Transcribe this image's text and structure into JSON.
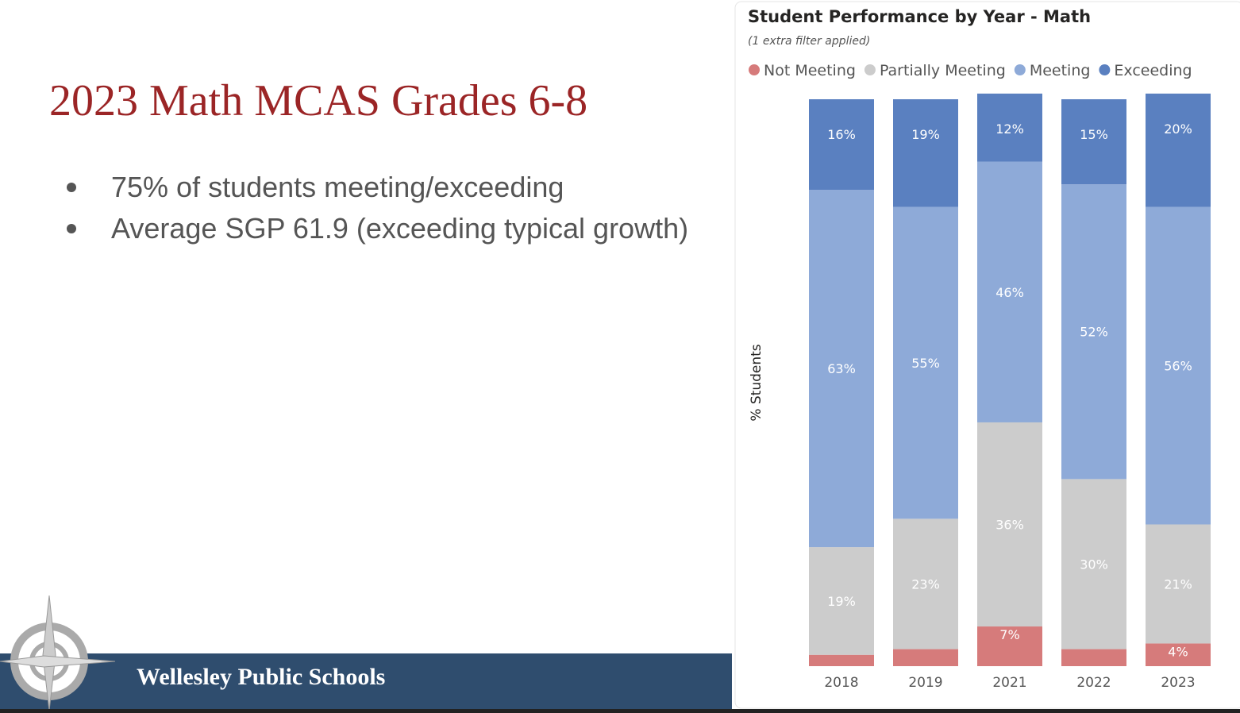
{
  "slide": {
    "title": "2023 Math MCAS Grades 6-8",
    "bullets": [
      "75% of students meeting/exceeding",
      "Average SGP 61.9 (exceeding typical growth)"
    ],
    "footer": "Wellesley Public Schools"
  },
  "chart_data": {
    "type": "stacked_bar",
    "title": "Student Performance by Year - Math",
    "subtitle": "(1 extra filter applied)",
    "y_label": "% Students",
    "categories": [
      "2018",
      "2019",
      "2021",
      "2022",
      "2023"
    ],
    "ylim": [
      0,
      100
    ],
    "series": [
      {
        "name": "Not Meeting",
        "color": "#d67b7b",
        "values": [
          2,
          3,
          7,
          3,
          4
        ],
        "value_labels": [
          null,
          null,
          "7%",
          null,
          "4%"
        ]
      },
      {
        "name": "Partially Meeting",
        "color": "#cccccc",
        "values": [
          19,
          23,
          36,
          30,
          21
        ],
        "value_labels": [
          "19%",
          "23%",
          "36%",
          "30%",
          "21%"
        ]
      },
      {
        "name": "Meeting",
        "color": "#8eaad8",
        "values": [
          63,
          55,
          46,
          52,
          56
        ],
        "value_labels": [
          "63%",
          "55%",
          "46%",
          "52%",
          "56%"
        ]
      },
      {
        "name": "Exceeding",
        "color": "#5a80c0",
        "values": [
          16,
          19,
          12,
          15,
          20
        ],
        "value_labels": [
          "16%",
          "19%",
          "12%",
          "15%",
          "20%"
        ]
      }
    ]
  }
}
